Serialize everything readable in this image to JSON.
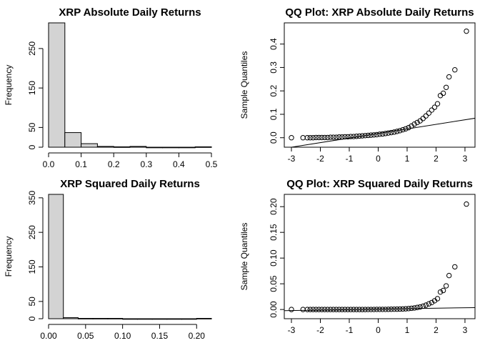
{
  "chart_data": [
    {
      "type": "bar",
      "title": "XRP Absolute Daily Returns",
      "xlabel": "",
      "ylabel": "Frequency",
      "bins": [
        [
          0.0,
          0.05
        ],
        [
          0.05,
          0.1
        ],
        [
          0.1,
          0.15
        ],
        [
          0.15,
          0.2
        ],
        [
          0.2,
          0.25
        ],
        [
          0.25,
          0.3
        ],
        [
          0.3,
          0.35
        ],
        [
          0.35,
          0.4
        ],
        [
          0.4,
          0.45
        ],
        [
          0.45,
          0.5
        ]
      ],
      "values": [
        315,
        37,
        9,
        2,
        1,
        2,
        0,
        0,
        0,
        1
      ],
      "xlim": [
        0,
        0.5
      ],
      "ylim": [
        0,
        315
      ],
      "xticks": [
        0.0,
        0.1,
        0.2,
        0.3,
        0.4,
        0.5
      ],
      "xtick_labels": [
        "0.0",
        "0.1",
        "0.2",
        "0.3",
        "0.4",
        "0.5"
      ],
      "yticks": [
        0,
        50,
        150,
        250
      ],
      "ytick_labels": [
        "0",
        "50",
        "150",
        "250"
      ]
    },
    {
      "type": "scatter",
      "title": "QQ Plot: XRP Absolute Daily Returns",
      "xlabel": "",
      "ylabel": "Sample Quantiles",
      "xlim": [
        -3.0,
        3.1
      ],
      "ylim": [
        -0.01,
        0.46
      ],
      "xticks": [
        -3,
        -2,
        -1,
        0,
        1,
        2,
        3
      ],
      "xtick_labels": [
        "-3",
        "-2",
        "-1",
        "0",
        "1",
        "2",
        "3"
      ],
      "yticks": [
        0.0,
        0.1,
        0.2,
        0.3,
        0.4
      ],
      "ytick_labels": [
        "0.0",
        "0.1",
        "0.2",
        "0.3",
        "0.4"
      ],
      "reference_line": {
        "slope": 0.0195,
        "intercept": 0.018
      },
      "points": [
        [
          -3.0,
          0.0
        ],
        [
          -2.6,
          0.0
        ],
        [
          -2.45,
          0.0
        ],
        [
          -2.35,
          0.0
        ],
        [
          -2.25,
          0.0
        ],
        [
          -2.15,
          0.001
        ],
        [
          -2.05,
          0.001
        ],
        [
          -1.95,
          0.001
        ],
        [
          -1.85,
          0.001
        ],
        [
          -1.75,
          0.001
        ],
        [
          -1.65,
          0.002
        ],
        [
          -1.55,
          0.002
        ],
        [
          -1.45,
          0.002
        ],
        [
          -1.35,
          0.003
        ],
        [
          -1.25,
          0.003
        ],
        [
          -1.15,
          0.004
        ],
        [
          -1.05,
          0.004
        ],
        [
          -0.95,
          0.005
        ],
        [
          -0.85,
          0.005
        ],
        [
          -0.75,
          0.006
        ],
        [
          -0.65,
          0.007
        ],
        [
          -0.55,
          0.008
        ],
        [
          -0.45,
          0.009
        ],
        [
          -0.35,
          0.01
        ],
        [
          -0.25,
          0.011
        ],
        [
          -0.15,
          0.012
        ],
        [
          -0.05,
          0.013
        ],
        [
          0.05,
          0.015
        ],
        [
          0.15,
          0.016
        ],
        [
          0.25,
          0.018
        ],
        [
          0.35,
          0.02
        ],
        [
          0.45,
          0.022
        ],
        [
          0.55,
          0.024
        ],
        [
          0.65,
          0.027
        ],
        [
          0.75,
          0.03
        ],
        [
          0.85,
          0.034
        ],
        [
          0.95,
          0.038
        ],
        [
          1.05,
          0.043
        ],
        [
          1.15,
          0.05
        ],
        [
          1.25,
          0.058
        ],
        [
          1.35,
          0.065
        ],
        [
          1.45,
          0.072
        ],
        [
          1.55,
          0.082
        ],
        [
          1.65,
          0.093
        ],
        [
          1.75,
          0.105
        ],
        [
          1.85,
          0.118
        ],
        [
          1.95,
          0.13
        ],
        [
          2.05,
          0.145
        ],
        [
          2.15,
          0.18
        ],
        [
          2.25,
          0.19
        ],
        [
          2.35,
          0.215
        ],
        [
          2.45,
          0.26
        ],
        [
          2.65,
          0.29
        ],
        [
          3.05,
          0.455
        ]
      ]
    },
    {
      "type": "bar",
      "title": "XRP Squared Daily Returns",
      "xlabel": "",
      "ylabel": "Frequency",
      "bins": [
        [
          0.0,
          0.02
        ],
        [
          0.02,
          0.04
        ],
        [
          0.04,
          0.06
        ],
        [
          0.06,
          0.08
        ],
        [
          0.08,
          0.1
        ],
        [
          0.1,
          0.12
        ],
        [
          0.12,
          0.14
        ],
        [
          0.14,
          0.16
        ],
        [
          0.16,
          0.18
        ],
        [
          0.18,
          0.2
        ],
        [
          0.2,
          0.22
        ]
      ],
      "values": [
        360,
        3,
        1,
        1,
        1,
        0,
        0,
        0,
        0,
        0,
        1
      ],
      "xlim": [
        0,
        0.22
      ],
      "ylim": [
        0,
        360
      ],
      "xticks": [
        0.0,
        0.05,
        0.1,
        0.15,
        0.2
      ],
      "xtick_labels": [
        "0.00",
        "0.05",
        "0.10",
        "0.15",
        "0.20"
      ],
      "yticks": [
        0,
        50,
        150,
        250,
        350
      ],
      "ytick_labels": [
        "0",
        "50",
        "150",
        "250",
        "350"
      ]
    },
    {
      "type": "scatter",
      "title": "QQ Plot: XRP Squared Daily Returns",
      "xlabel": "",
      "ylabel": "Sample Quantiles",
      "xlim": [
        -3.0,
        3.1
      ],
      "ylim": [
        -0.004,
        0.21
      ],
      "xticks": [
        -3,
        -2,
        -1,
        0,
        1,
        2,
        3
      ],
      "xtick_labels": [
        "-3",
        "-2",
        "-1",
        "0",
        "1",
        "2",
        "3"
      ],
      "yticks": [
        0.0,
        0.05,
        0.1,
        0.15,
        0.2
      ],
      "ytick_labels": [
        "0.00",
        "0.05",
        "0.10",
        "0.15",
        "0.20"
      ],
      "reference_line": {
        "slope": 0.0009,
        "intercept": 0.0007
      },
      "points": [
        [
          -3.0,
          0.0
        ],
        [
          -2.6,
          0.0
        ],
        [
          -2.45,
          0.0
        ],
        [
          -2.35,
          0.0
        ],
        [
          -2.25,
          0.0
        ],
        [
          -2.15,
          0.0
        ],
        [
          -2.05,
          0.0
        ],
        [
          -1.95,
          0.0
        ],
        [
          -1.85,
          0.0
        ],
        [
          -1.75,
          0.0
        ],
        [
          -1.65,
          0.0
        ],
        [
          -1.55,
          0.0
        ],
        [
          -1.45,
          0.0
        ],
        [
          -1.35,
          0.0
        ],
        [
          -1.25,
          0.0
        ],
        [
          -1.15,
          0.0
        ],
        [
          -1.05,
          0.0
        ],
        [
          -0.95,
          0.0
        ],
        [
          -0.85,
          0.0
        ],
        [
          -0.75,
          0.0
        ],
        [
          -0.65,
          0.0
        ],
        [
          -0.55,
          0.0
        ],
        [
          -0.45,
          0.0
        ],
        [
          -0.35,
          0.0001
        ],
        [
          -0.25,
          0.0001
        ],
        [
          -0.15,
          0.0001
        ],
        [
          -0.05,
          0.0002
        ],
        [
          0.05,
          0.0002
        ],
        [
          0.15,
          0.0003
        ],
        [
          0.25,
          0.0003
        ],
        [
          0.35,
          0.0004
        ],
        [
          0.45,
          0.0005
        ],
        [
          0.55,
          0.0006
        ],
        [
          0.65,
          0.0007
        ],
        [
          0.75,
          0.0009
        ],
        [
          0.85,
          0.0011
        ],
        [
          0.95,
          0.0014
        ],
        [
          1.05,
          0.0018
        ],
        [
          1.15,
          0.0024
        ],
        [
          1.25,
          0.003
        ],
        [
          1.35,
          0.004
        ],
        [
          1.45,
          0.005
        ],
        [
          1.55,
          0.0065
        ],
        [
          1.65,
          0.0085
        ],
        [
          1.75,
          0.011
        ],
        [
          1.85,
          0.0135
        ],
        [
          1.95,
          0.017
        ],
        [
          2.05,
          0.021
        ],
        [
          2.15,
          0.034
        ],
        [
          2.25,
          0.037
        ],
        [
          2.35,
          0.046
        ],
        [
          2.45,
          0.066
        ],
        [
          2.65,
          0.083
        ],
        [
          3.05,
          0.205
        ]
      ]
    }
  ]
}
